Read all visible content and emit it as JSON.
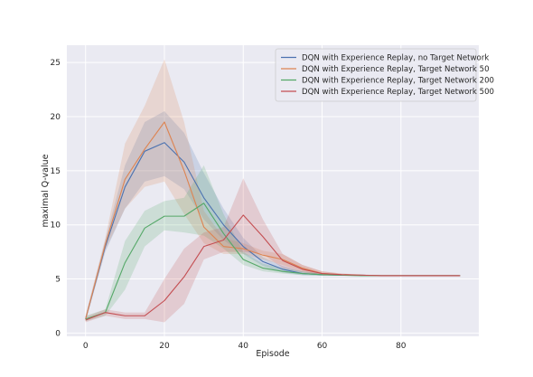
{
  "chart_data": {
    "type": "line",
    "title": "",
    "xlabel": "Episode",
    "ylabel": "maximal Q-value",
    "xlim": [
      -4.75,
      99.75
    ],
    "ylim": [
      -0.3,
      26.6
    ],
    "xticks": [
      0,
      20,
      40,
      60,
      80
    ],
    "yticks": [
      0,
      5,
      10,
      15,
      20,
      25
    ],
    "grid": true,
    "legend_position": "top-right",
    "background": "#eaeaf2",
    "x": [
      0,
      5,
      10,
      15,
      20,
      25,
      30,
      35,
      40,
      45,
      50,
      55,
      60,
      65,
      70,
      75,
      80,
      85,
      90,
      95
    ],
    "series": [
      {
        "name": "DQN with Experience Replay, no Target Network",
        "color": "#4c72b0",
        "values": [
          1.3,
          8.0,
          13.5,
          16.8,
          17.6,
          15.8,
          12.5,
          10.0,
          8.0,
          6.6,
          5.9,
          5.5,
          5.4,
          5.35,
          5.35,
          5.3,
          5.3,
          5.3,
          5.3,
          5.3
        ],
        "lower": [
          1.1,
          7.5,
          11.5,
          14.0,
          14.5,
          13.3,
          10.5,
          8.6,
          7.3,
          6.2,
          5.6,
          5.35,
          5.3,
          5.3,
          5.3,
          5.25,
          5.25,
          5.25,
          5.25,
          5.25
        ],
        "upper": [
          1.6,
          8.6,
          15.5,
          19.5,
          20.5,
          18.5,
          14.8,
          11.5,
          8.8,
          7.0,
          6.2,
          5.7,
          5.5,
          5.4,
          5.4,
          5.35,
          5.35,
          5.35,
          5.35,
          5.35
        ]
      },
      {
        "name": "DQN with Experience Replay, Target Network 50",
        "color": "#dd8452",
        "values": [
          1.3,
          8.2,
          14.2,
          17.0,
          19.5,
          15.0,
          9.8,
          8.0,
          7.8,
          7.2,
          6.8,
          6.0,
          5.5,
          5.4,
          5.35,
          5.3,
          5.3,
          5.3,
          5.3,
          5.3
        ],
        "lower": [
          1.1,
          7.7,
          11.5,
          13.5,
          14.0,
          11.0,
          8.3,
          7.3,
          7.3,
          6.8,
          6.3,
          5.7,
          5.35,
          5.3,
          5.3,
          5.25,
          5.25,
          5.25,
          5.25,
          5.25
        ],
        "upper": [
          1.6,
          8.8,
          17.5,
          21.0,
          25.3,
          19.5,
          11.3,
          8.8,
          8.3,
          7.6,
          7.3,
          6.3,
          5.7,
          5.5,
          5.4,
          5.35,
          5.35,
          5.35,
          5.35,
          5.35
        ]
      },
      {
        "name": "DQN with Experience Replay, Target Network 200",
        "color": "#55a868",
        "values": [
          1.3,
          1.9,
          6.5,
          9.7,
          10.8,
          10.8,
          12.0,
          9.2,
          6.8,
          6.0,
          5.7,
          5.5,
          5.4,
          5.35,
          5.3,
          5.3,
          5.3,
          5.3,
          5.3,
          5.3
        ],
        "lower": [
          1.1,
          1.6,
          4.0,
          8.0,
          9.5,
          9.3,
          9.0,
          7.8,
          6.3,
          5.7,
          5.5,
          5.35,
          5.3,
          5.3,
          5.25,
          5.25,
          5.25,
          5.25,
          5.25,
          5.25
        ],
        "upper": [
          1.6,
          2.2,
          8.5,
          11.3,
          12.2,
          12.5,
          15.5,
          11.0,
          7.5,
          6.4,
          6.0,
          5.7,
          5.5,
          5.4,
          5.35,
          5.35,
          5.35,
          5.35,
          5.35,
          5.35
        ]
      },
      {
        "name": "DQN with Experience Replay, Target Network 500",
        "color": "#c44e52",
        "values": [
          1.2,
          1.9,
          1.6,
          1.6,
          3.0,
          5.2,
          8.0,
          8.6,
          10.9,
          8.9,
          6.7,
          5.9,
          5.5,
          5.4,
          5.35,
          5.3,
          5.3,
          5.3,
          5.3,
          5.3
        ],
        "lower": [
          1.0,
          1.6,
          1.3,
          1.3,
          1.0,
          2.7,
          6.8,
          7.5,
          7.5,
          7.3,
          6.0,
          5.6,
          5.35,
          5.3,
          5.3,
          5.25,
          5.25,
          5.25,
          5.25,
          5.25
        ],
        "upper": [
          1.5,
          2.2,
          1.9,
          1.9,
          5.0,
          7.8,
          9.3,
          9.8,
          14.3,
          10.5,
          7.3,
          6.3,
          5.7,
          5.5,
          5.4,
          5.35,
          5.35,
          5.35,
          5.35,
          5.35
        ]
      }
    ]
  }
}
